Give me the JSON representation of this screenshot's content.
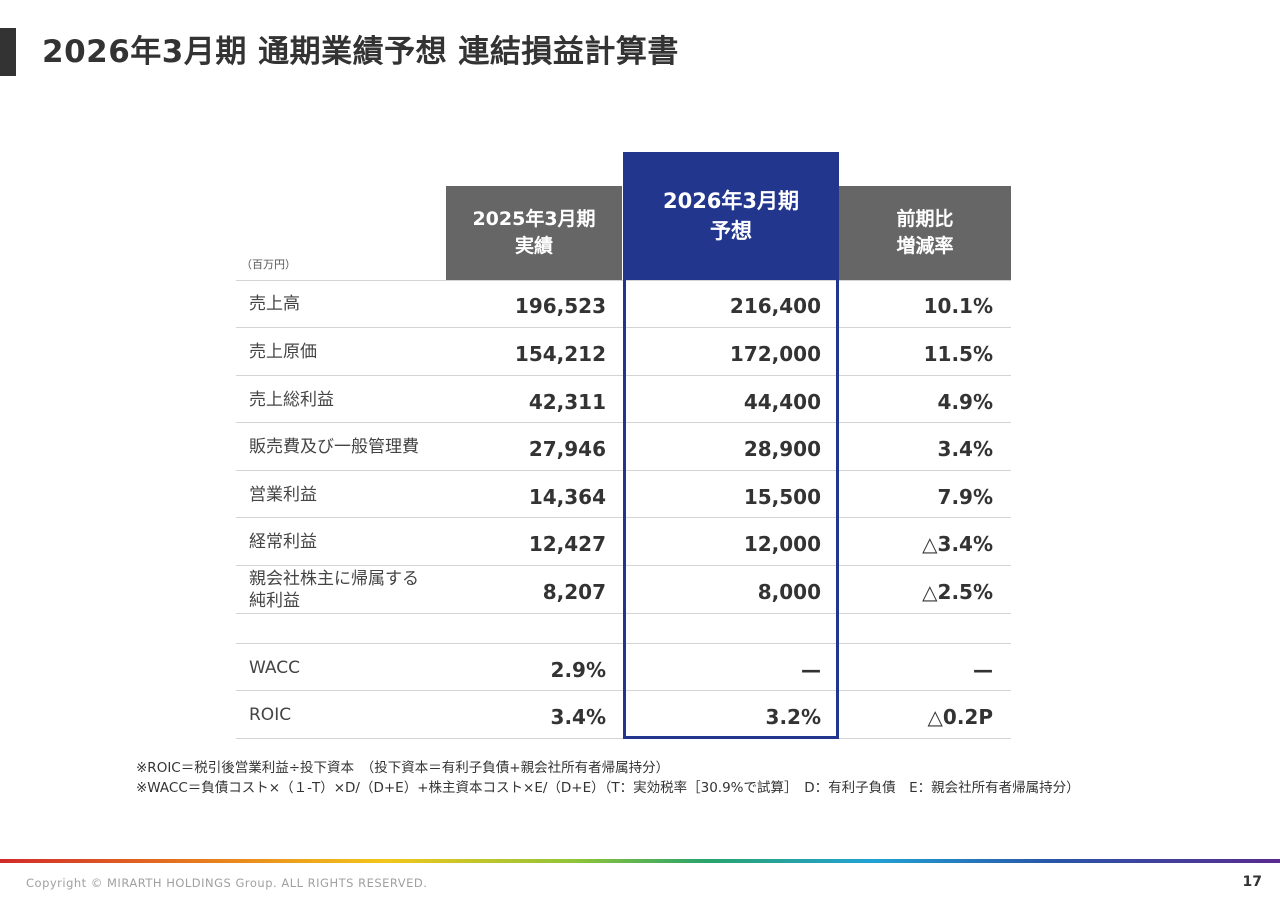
{
  "title": "2026年3月期 通期業績予想 連結損益計算書",
  "unit": "（百万円）",
  "columns": {
    "prev": [
      "2025年3月期",
      "実績"
    ],
    "forecast": [
      "2026年3月期",
      "予想"
    ],
    "yoy": [
      "前期比",
      "増減率"
    ]
  },
  "rows": [
    {
      "label": [
        "売上高"
      ],
      "prev": "196,523",
      "forecast": "216,400",
      "yoy": "10.1%"
    },
    {
      "label": [
        "売上原価"
      ],
      "prev": "154,212",
      "forecast": "172,000",
      "yoy": "11.5%"
    },
    {
      "label": [
        "売上総利益"
      ],
      "prev": "42,311",
      "forecast": "44,400",
      "yoy": "4.9%"
    },
    {
      "label": [
        "販売費及び一般管理費"
      ],
      "prev": "27,946",
      "forecast": "28,900",
      "yoy": "3.4%"
    },
    {
      "label": [
        "営業利益"
      ],
      "prev": "14,364",
      "forecast": "15,500",
      "yoy": "7.9%"
    },
    {
      "label": [
        "経常利益"
      ],
      "prev": "12,427",
      "forecast": "12,000",
      "yoy": "△3.4%"
    },
    {
      "label": [
        "親会社株主に帰属する",
        "純利益"
      ],
      "prev": "8,207",
      "forecast": "8,000",
      "yoy": "△2.5%"
    },
    {
      "label": [
        ""
      ],
      "prev": "",
      "forecast": "",
      "yoy": ""
    },
    {
      "label": [
        "WACC"
      ],
      "prev": "2.9%",
      "forecast": "—",
      "yoy": "—"
    },
    {
      "label": [
        "ROIC"
      ],
      "prev": "3.4%",
      "forecast": "3.2%",
      "yoy": "△0.2P"
    }
  ],
  "notes": [
    "※ROIC＝税引後営業利益÷投下資本　（投下資本＝有利子負債+親会社所有者帰属持分）",
    "※WACC＝負債コスト×（１-T）×D/（D+E）+株主資本コスト×E/（D+E）（T：実効税率［30.9%で試算］　D：有利子負債　E：親会社所有者帰属持分）"
  ],
  "footer": {
    "copyright": "Copyright © MIRARTH HOLDINGS Group. ALL RIGHTS RESERVED.",
    "page": "17"
  },
  "colors": {
    "forecast_accent": "#22368e",
    "header_gray": "#666666"
  }
}
